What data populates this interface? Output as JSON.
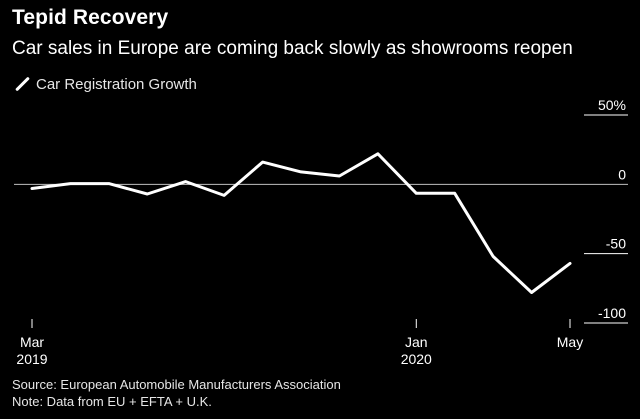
{
  "chart_data": {
    "type": "line",
    "title": "Tepid Recovery",
    "subtitle": "Car sales in Europe are coming back slowly as showrooms reopen",
    "legend": [
      "Car Registration Growth"
    ],
    "series": [
      {
        "name": "Car Registration Growth",
        "x": [
          "Mar 2019",
          "Apr 2019",
          "May 2019",
          "Jun 2019",
          "Jul 2019",
          "Aug 2019",
          "Sep 2019",
          "Oct 2019",
          "Nov 2019",
          "Dec 2019",
          "Jan 2020",
          "Feb 2020",
          "Mar 2020",
          "Apr 2020",
          "May 2020"
        ],
        "values": [
          -3,
          0.5,
          0.5,
          -7,
          2,
          -8,
          16,
          9,
          6,
          22,
          -6.5,
          -6.5,
          -52,
          -78,
          -57
        ]
      }
    ],
    "x_ticks": [
      {
        "label_top": "Mar",
        "label_bottom": "2019",
        "index": 0
      },
      {
        "label_top": "Jan",
        "label_bottom": "2020",
        "index": 10
      },
      {
        "label_top": "May",
        "label_bottom": "",
        "index": 14
      }
    ],
    "y_ticks": [
      {
        "label": "50%",
        "value": 50
      },
      {
        "label": "0",
        "value": 0
      },
      {
        "label": "-50",
        "value": -50
      },
      {
        "label": "-100",
        "value": -100
      }
    ],
    "ylim": [
      -100,
      50
    ],
    "zero_line": true,
    "xlabel": "",
    "ylabel": ""
  },
  "footer": {
    "source": "Source: European Automobile Manufacturers Association",
    "note": "Note: Data from EU + EFTA + U.K."
  },
  "colors": {
    "background": "#000000",
    "line": "#ffffff",
    "axis": "#ffffff",
    "zero_line": "#bfbfbf"
  }
}
